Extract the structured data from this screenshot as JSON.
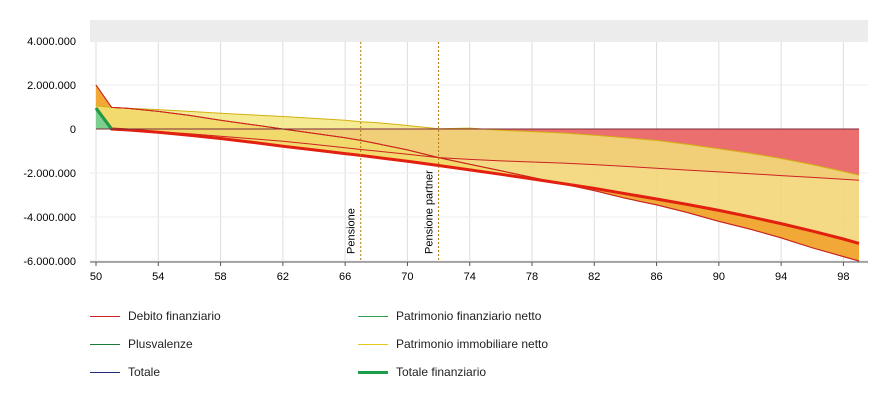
{
  "chart_data": {
    "type": "area",
    "x": [
      50,
      51,
      52,
      54,
      56,
      58,
      60,
      62,
      64,
      66,
      67,
      68,
      70,
      72,
      74,
      76,
      78,
      80,
      82,
      84,
      86,
      88,
      90,
      92,
      94,
      96,
      98,
      99
    ],
    "xticks": [
      "50",
      "54",
      "58",
      "62",
      "66",
      "70",
      "74",
      "78",
      "82",
      "86",
      "90",
      "94",
      "98"
    ],
    "yticks": [
      "4.000.000",
      "2.000.000",
      "0",
      "-2.000.000",
      "-4.000.000",
      "-6.000.000"
    ],
    "ylim": [
      -6000000,
      4000000
    ],
    "xlim": [
      50,
      99
    ],
    "grid": true,
    "legend_placement": "bottom",
    "annotations": [
      {
        "x": 67,
        "label": "Pensione"
      },
      {
        "x": 72,
        "label": "Pensione partner"
      }
    ],
    "series": [
      {
        "name": "Debito finanziario",
        "color": "#cc2222",
        "values": [
          0,
          0,
          0,
          0,
          0,
          0,
          0,
          0,
          0,
          0,
          0,
          0,
          0,
          0,
          0,
          0,
          0,
          0,
          0,
          0,
          0,
          0,
          0,
          0,
          0,
          0,
          0,
          0
        ]
      },
      {
        "name": "Patrimonio finanziario netto",
        "color": "#2e9e4f",
        "values": [
          950000,
          0,
          -40000,
          -120000,
          -220000,
          -330000,
          -440000,
          -560000,
          -700000,
          -850000,
          -930000,
          -1000000,
          -1150000,
          -1300000,
          -1380000,
          -1450000,
          -1500000,
          -1550000,
          -1620000,
          -1700000,
          -1780000,
          -1870000,
          -1950000,
          -2030000,
          -2120000,
          -2200000,
          -2280000,
          -2330000
        ]
      },
      {
        "name": "Plusvalenze",
        "color": "#1a7a3a",
        "values": [
          0,
          0,
          0,
          0,
          0,
          0,
          0,
          0,
          0,
          0,
          0,
          0,
          0,
          0,
          0,
          0,
          0,
          0,
          0,
          0,
          0,
          0,
          0,
          0,
          0,
          0,
          0,
          0
        ]
      },
      {
        "name": "Patrimonio immobiliare netto",
        "color": "#e6c619",
        "values": [
          1050000,
          980000,
          940000,
          880000,
          800000,
          720000,
          640000,
          570000,
          480000,
          400000,
          330000,
          290000,
          160000,
          10000,
          40000,
          -60000,
          -120000,
          -180000,
          -280000,
          -400000,
          -520000,
          -700000,
          -900000,
          -1100000,
          -1340000,
          -1620000,
          -1930000,
          -2100000
        ]
      },
      {
        "name": "Totale",
        "color": "#1f2a7a",
        "values": [
          2000000,
          980000,
          940000,
          800000,
          620000,
          400000,
          200000,
          0,
          -200000,
          -400000,
          -520000,
          -660000,
          -950000,
          -1300000,
          -1600000,
          -1900000,
          -2200000,
          -2500000,
          -2800000,
          -3150000,
          -3450000,
          -3800000,
          -4200000,
          -4550000,
          -4950000,
          -5400000,
          -5800000,
          -6000000
        ]
      },
      {
        "name": "Totale finanziario",
        "color": "#1a9e4a",
        "values": [
          950000,
          0,
          -40000,
          -150000,
          -280000,
          -430000,
          -600000,
          -780000,
          -950000,
          -1120000,
          -1200000,
          -1290000,
          -1470000,
          -1660000,
          -1860000,
          -2060000,
          -2270000,
          -2480000,
          -2700000,
          -2940000,
          -3180000,
          -3430000,
          -3700000,
          -3990000,
          -4300000,
          -4640000,
          -5000000,
          -5200000
        ]
      }
    ]
  }
}
